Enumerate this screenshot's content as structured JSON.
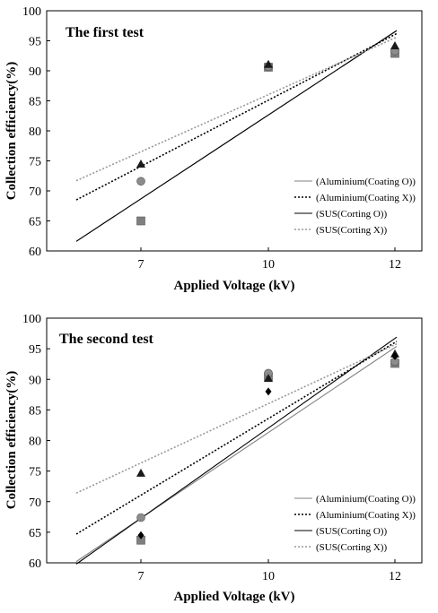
{
  "chart_data": [
    {
      "type": "scatter",
      "title": "The first test",
      "xlabel": "Applied Voltage (kV)",
      "ylabel": "Collection efficiency(%)",
      "x_categories": [
        "7",
        "10",
        "12"
      ],
      "ylim": [
        60,
        100
      ],
      "yticks": [
        "60",
        "65",
        "70",
        "75",
        "80",
        "85",
        "90",
        "95",
        "100"
      ],
      "legend_position": "lower-right",
      "series": [
        {
          "name": "(Aluminium(Coating O))",
          "marker": "square",
          "color": "#7f7f7f",
          "line_style": "solid",
          "line_color": "#808080",
          "values": [
            65.0,
            90.6,
            92.9
          ],
          "trend": [
            61.6,
            96.7
          ]
        },
        {
          "name": "(Aluminium(Coating X))",
          "marker": "circle",
          "color": "#8c8c8c",
          "line_style": "dotted",
          "line_color": "#000000",
          "values": [
            71.6,
            90.7,
            93.3
          ],
          "trend": [
            68.5,
            96.2
          ]
        },
        {
          "name": "(SUS(Corting O))",
          "marker": "triangle",
          "color": "#1a1a1a",
          "line_style": "solid",
          "line_color": "#000000",
          "values": [
            74.4,
            91.0,
            94.1
          ],
          "trend": [
            61.6,
            96.7
          ]
        },
        {
          "name": "(SUS(Corting X))",
          "marker": "none",
          "color": "#999999",
          "line_style": "dotted",
          "line_color": "#999999",
          "values": [],
          "trend": [
            71.7,
            95.6
          ]
        }
      ]
    },
    {
      "type": "scatter",
      "title": "The second test",
      "xlabel": "Applied Voltage (kV)",
      "ylabel": "Collection efficiency(%)",
      "x_categories": [
        "7",
        "10",
        "12"
      ],
      "ylim": [
        60,
        100
      ],
      "yticks": [
        "60",
        "65",
        "70",
        "75",
        "80",
        "85",
        "90",
        "95",
        "100"
      ],
      "legend_position": "lower-right",
      "series": [
        {
          "name": "(Aluminium(Coating O))",
          "marker": "square",
          "color": "#7f7f7f",
          "line_style": "solid",
          "line_color": "#808080",
          "values": [
            63.7,
            90.4,
            92.6
          ],
          "trend": [
            60.2,
            95.4
          ]
        },
        {
          "name": "(Aluminium(Coating X))",
          "marker": "circle",
          "color": "#8c8c8c",
          "line_style": "dotted",
          "line_color": "#000000",
          "values": [
            67.4,
            91.0,
            92.9
          ],
          "trend": [
            64.7,
            96.2
          ]
        },
        {
          "name": "(SUS(Corting O))",
          "marker": "triangle",
          "color": "#1a1a1a",
          "line_style": "solid",
          "line_color": "#000000",
          "values": [
            74.6,
            90.1,
            94.1
          ],
          "trend": [
            59.8,
            96.9
          ]
        },
        {
          "name": "(SUS(Corting X))",
          "marker": "diamond",
          "color": "#000000",
          "line_style": "dotted",
          "line_color": "#999999",
          "values": [
            64.5,
            88.0,
            93.8
          ],
          "trend": [
            71.4,
            95.8
          ]
        }
      ]
    }
  ]
}
